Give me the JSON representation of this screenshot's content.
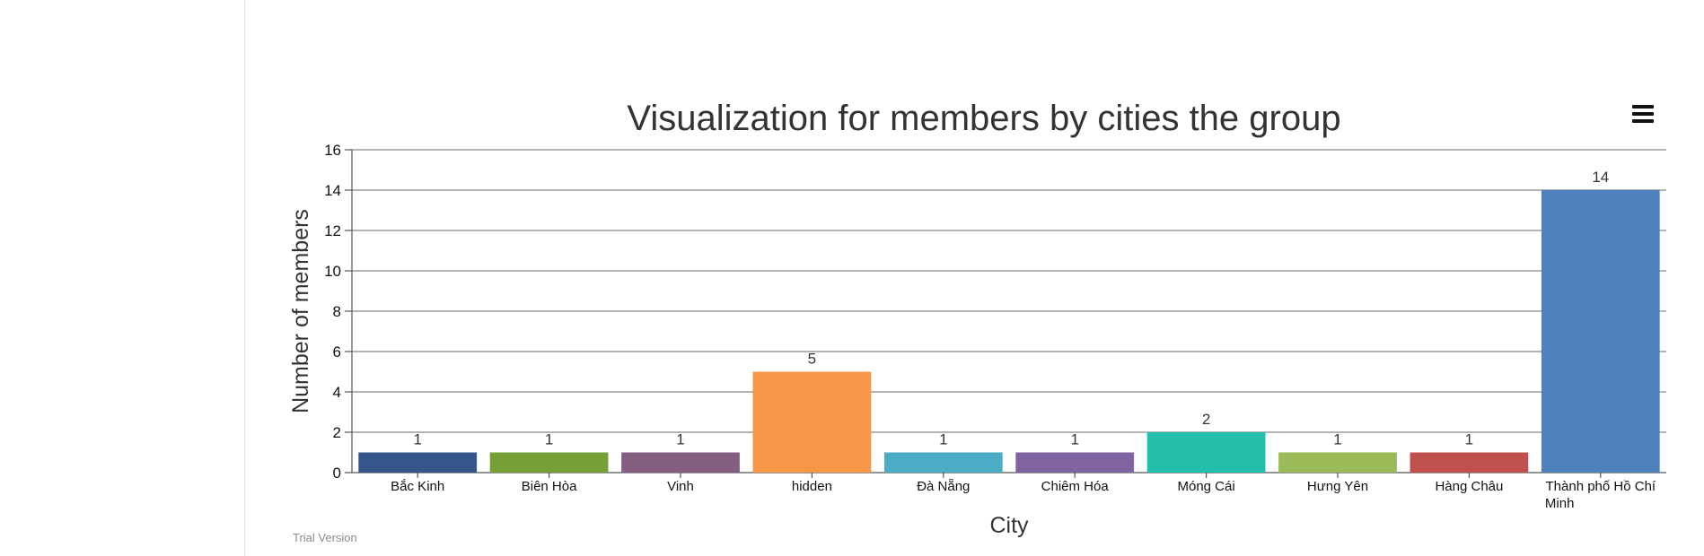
{
  "chart_data": {
    "type": "bar",
    "title": "Visualization for members by cities the group",
    "xlabel": "City",
    "ylabel": "Number of members",
    "ylim": [
      0,
      16
    ],
    "yticks": [
      0,
      2,
      4,
      6,
      8,
      10,
      12,
      14,
      16
    ],
    "grid": true,
    "categories": [
      "Bắc Kinh",
      "Biên Hòa",
      "Vinh",
      "hidden",
      "Đà Nẵng",
      "Chiêm Hóa",
      "Móng Cái",
      "Hưng Yên",
      "Hàng Châu",
      "Thành phố Hồ Chí Minh"
    ],
    "values": [
      1,
      1,
      1,
      5,
      1,
      1,
      2,
      1,
      1,
      14
    ],
    "colors": [
      "#34568b",
      "#76a035",
      "#845f80",
      "#f79646",
      "#4bacc6",
      "#8064a2",
      "#23bfaa",
      "#9bbb59",
      "#c0504d",
      "#4f81bd"
    ]
  },
  "footer": {
    "trial_label": "Trial Version"
  },
  "menu": {
    "icon": "hamburger-menu-icon"
  }
}
